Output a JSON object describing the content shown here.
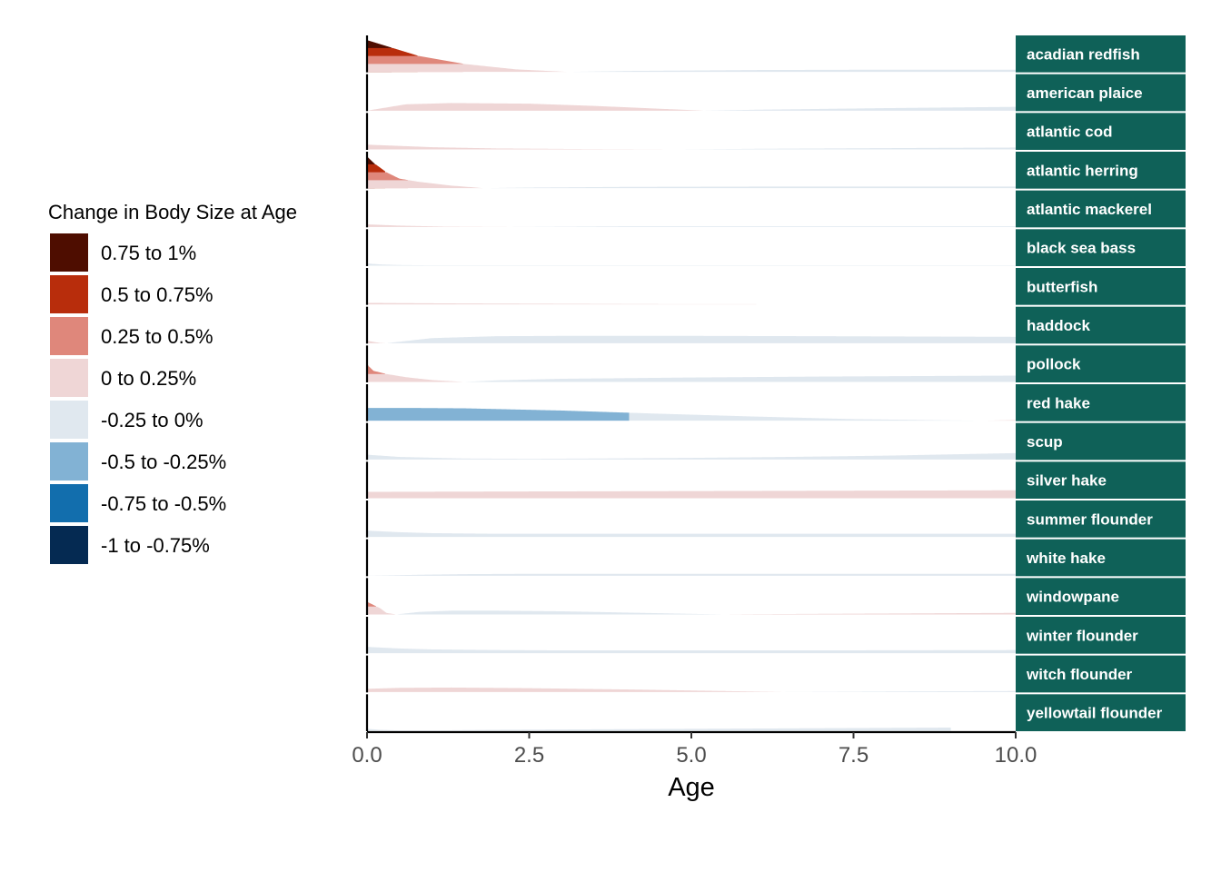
{
  "chart_data": {
    "type": "area",
    "xlabel": "Age",
    "xlim": [
      0,
      10
    ],
    "x_ticks": [
      "0.0",
      "2.5",
      "5.0",
      "7.5",
      "10.0"
    ],
    "x_tick_values": [
      0,
      2.5,
      5,
      7.5,
      10
    ],
    "legend": {
      "title": "Change in Body Size at Age",
      "placement": "left",
      "bins": [
        {
          "label": "0.75 to 1%",
          "color": "#4e0d00"
        },
        {
          "label": "0.5 to 0.75%",
          "color": "#b82d0c"
        },
        {
          "label": "0.25 to 0.5%",
          "color": "#df877b"
        },
        {
          "label": "0 to 0.25%",
          "color": "#efd6d6"
        },
        {
          "label": "-0.25 to 0%",
          "color": "#e0e8ef"
        },
        {
          "label": "-0.5 to -0.25%",
          "color": "#82b2d4"
        },
        {
          "label": "-0.75 to -0.5%",
          "color": "#126ead"
        },
        {
          "label": "-1 to -0.75%",
          "color": "#052a52"
        }
      ]
    },
    "strip_color": "#0f6158",
    "series": [
      {
        "name": "acadian redfish",
        "x": [
          0,
          0.4,
          0.8,
          1.5,
          2.3,
          3.1,
          4,
          6,
          8,
          10
        ],
        "values": [
          1.0,
          0.75,
          0.5,
          0.25,
          0.08,
          0.0,
          -0.03,
          -0.06,
          -0.07,
          -0.07
        ]
      },
      {
        "name": "american plaice",
        "x": [
          0,
          0.6,
          1.3,
          2.5,
          3.5,
          5.2,
          6,
          8,
          10
        ],
        "values": [
          0.0,
          0.2,
          0.24,
          0.22,
          0.15,
          0.0,
          -0.03,
          -0.08,
          -0.12
        ]
      },
      {
        "name": "atlantic cod",
        "x": [
          0,
          0.5,
          1,
          2,
          3.5,
          4.8,
          6,
          8,
          10
        ],
        "values": [
          0.15,
          0.11,
          0.07,
          0.03,
          0.01,
          0.0,
          -0.02,
          -0.04,
          -0.06
        ]
      },
      {
        "name": "atlantic herring",
        "x": [
          0,
          0.1,
          0.3,
          0.5,
          0.8,
          1.3,
          1.8,
          2.5,
          4,
          6,
          8,
          10
        ],
        "values": [
          1.0,
          0.8,
          0.5,
          0.3,
          0.2,
          0.08,
          0.0,
          -0.02,
          -0.04,
          -0.05,
          -0.05,
          -0.05
        ]
      },
      {
        "name": "atlantic mackerel",
        "x": [
          0,
          0.5,
          1.2,
          2.2,
          4,
          6,
          8,
          10
        ],
        "values": [
          0.08,
          0.04,
          0.01,
          0.0,
          -0.02,
          -0.02,
          -0.02,
          -0.02
        ]
      },
      {
        "name": "black sea bass",
        "x": [
          0,
          0.2,
          0.5,
          1,
          2,
          4,
          6,
          8,
          10
        ],
        "values": [
          -0.07,
          -0.04,
          -0.02,
          -0.01,
          -0.01,
          -0.01,
          -0.01,
          -0.01,
          -0.01
        ]
      },
      {
        "name": "butterfish",
        "x": [
          0,
          0.6,
          1.5,
          3,
          4.5,
          6
        ],
        "values": [
          0.05,
          0.04,
          0.03,
          0.02,
          0.01,
          0.01
        ]
      },
      {
        "name": "haddock",
        "x": [
          0,
          0.1,
          0.2,
          0.3,
          1,
          2,
          3,
          5,
          7,
          10
        ],
        "values": [
          0.08,
          0.04,
          0.01,
          0.0,
          -0.16,
          -0.22,
          -0.23,
          -0.23,
          -0.22,
          -0.2
        ]
      },
      {
        "name": "pollock",
        "x": [
          0,
          0.1,
          0.3,
          0.6,
          1,
          1.5,
          2,
          3,
          5,
          7,
          10
        ],
        "values": [
          0.55,
          0.35,
          0.25,
          0.15,
          0.06,
          0.0,
          -0.05,
          -0.1,
          -0.14,
          -0.17,
          -0.2
        ]
      },
      {
        "name": "red hake",
        "x": [
          0,
          0.8,
          1.5,
          3,
          4.5,
          6,
          7.5,
          9,
          9.5,
          10
        ],
        "values": [
          -0.4,
          -0.4,
          -0.39,
          -0.32,
          -0.22,
          -0.13,
          -0.05,
          -0.01,
          0.0,
          0.02
        ]
      },
      {
        "name": "scup",
        "x": [
          0,
          0.5,
          1.5,
          2.5,
          3.5,
          5,
          6.5,
          8,
          10
        ],
        "values": [
          -0.15,
          -0.08,
          -0.03,
          -0.02,
          -0.03,
          -0.05,
          -0.08,
          -0.12,
          -0.2
        ]
      },
      {
        "name": "silver hake",
        "x": [
          0,
          2,
          4,
          6,
          8,
          10
        ],
        "values": [
          0.2,
          0.21,
          0.22,
          0.23,
          0.24,
          0.25
        ]
      },
      {
        "name": "summer flounder",
        "x": [
          0,
          0.5,
          1,
          2,
          3,
          5,
          7,
          10
        ],
        "values": [
          -0.2,
          -0.15,
          -0.12,
          -0.1,
          -0.1,
          -0.1,
          -0.1,
          -0.1
        ]
      },
      {
        "name": "white hake",
        "x": [
          0,
          0.3,
          0.8,
          1.5,
          2.5,
          4,
          6,
          8,
          10
        ],
        "values": [
          0.0,
          -0.01,
          -0.03,
          -0.05,
          -0.06,
          -0.06,
          -0.06,
          -0.06,
          -0.06
        ]
      },
      {
        "name": "windowpane",
        "x": [
          0,
          0.2,
          0.3,
          0.45,
          0.8,
          1.3,
          2,
          3,
          4,
          5,
          5.5,
          6,
          8,
          10
        ],
        "values": [
          0.4,
          0.2,
          0.05,
          0.0,
          -0.08,
          -0.12,
          -0.12,
          -0.1,
          -0.06,
          -0.02,
          0.0,
          0.01,
          0.03,
          0.05
        ]
      },
      {
        "name": "winter flounder",
        "x": [
          0,
          0.5,
          1,
          2,
          3,
          5,
          7,
          10
        ],
        "values": [
          -0.2,
          -0.15,
          -0.12,
          -0.1,
          -0.09,
          -0.09,
          -0.09,
          -0.1
        ]
      },
      {
        "name": "witch flounder",
        "x": [
          0,
          0.5,
          1.3,
          2.5,
          4,
          5.5,
          6.4,
          7.5,
          8.5,
          10
        ],
        "values": [
          0.1,
          0.13,
          0.14,
          0.12,
          0.08,
          0.03,
          0.0,
          -0.01,
          -0.02,
          -0.03
        ]
      },
      {
        "name": "yellowtail flounder",
        "x": [
          0,
          0.2,
          0.5,
          1,
          2,
          4,
          6,
          8,
          9
        ],
        "values": [
          -0.06,
          -0.03,
          -0.01,
          -0.01,
          -0.03,
          -0.05,
          -0.07,
          -0.09,
          -0.1
        ]
      }
    ]
  }
}
